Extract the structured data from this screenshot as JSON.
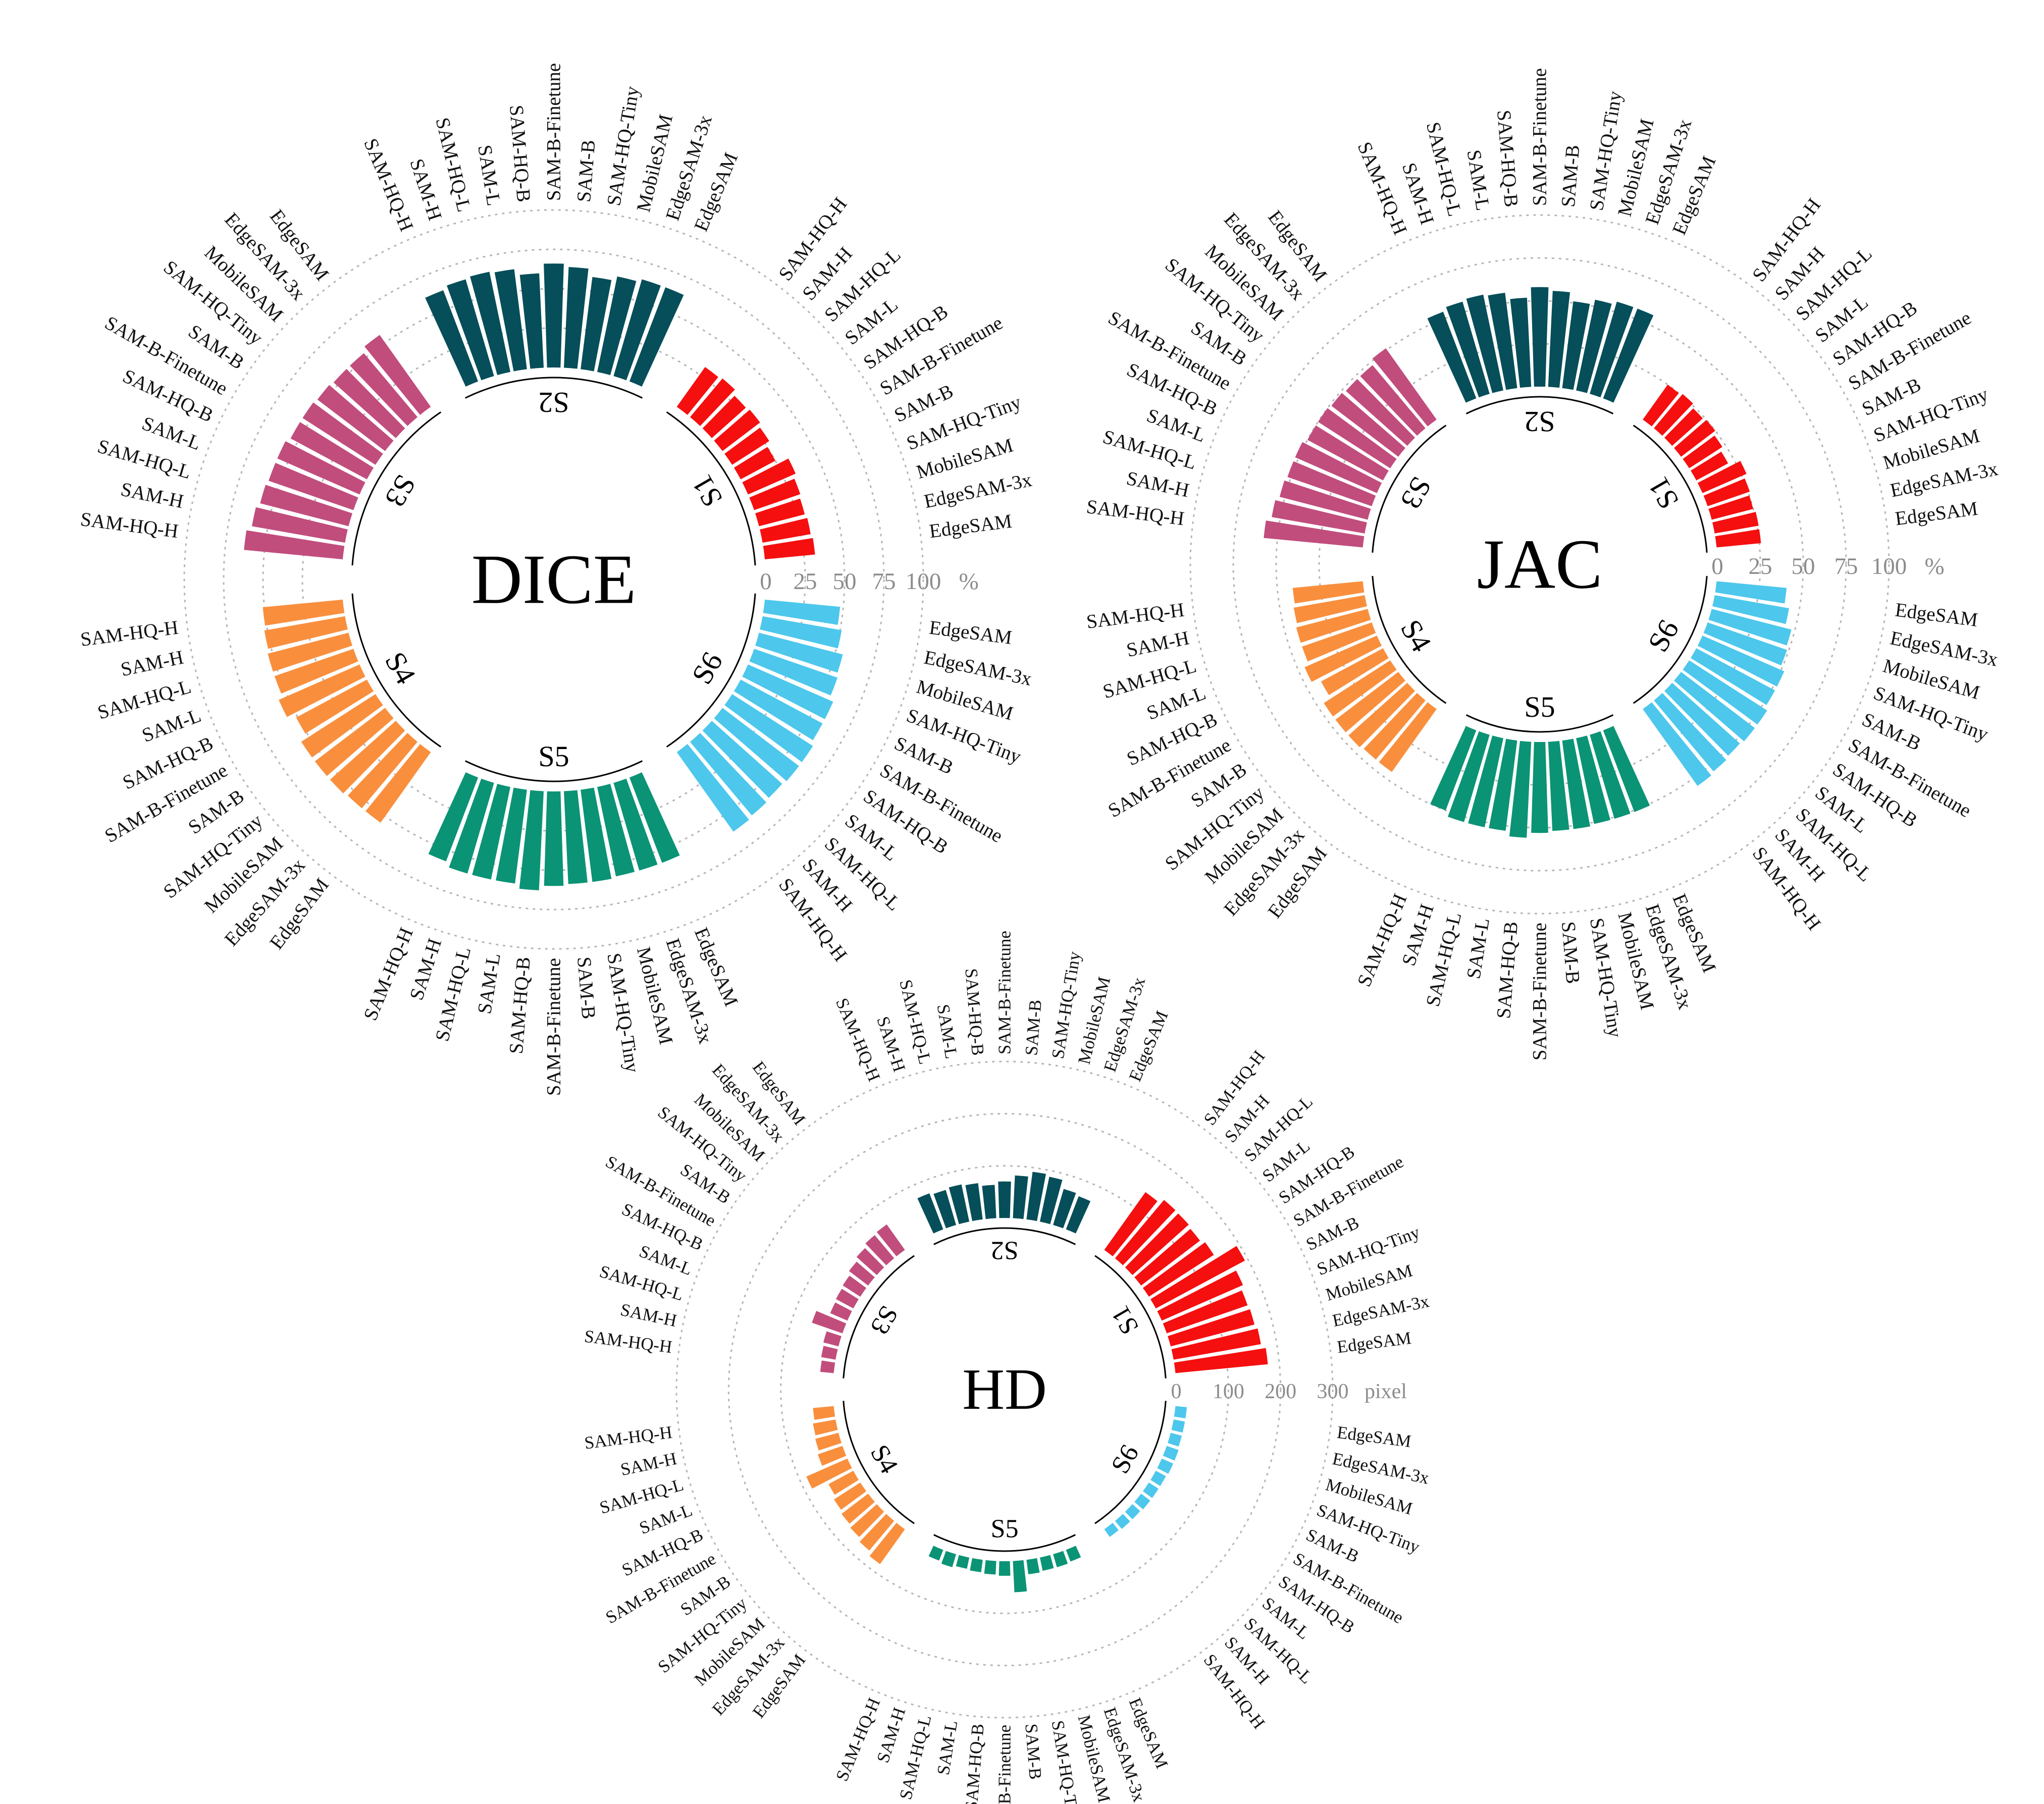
{
  "colors": {
    "S1": "#f50f0f",
    "S2": "#064e59",
    "S3": "#c14d7d",
    "S4": "#f98f3d",
    "S5": "#0b9375",
    "S6": "#4dc7ec"
  },
  "chart_data": [
    {
      "type": "radial-bar",
      "title": "DICE",
      "unit": "%",
      "ticks": [
        "0",
        "25",
        "50",
        "75",
        "100"
      ],
      "ylim": [
        0,
        100
      ],
      "groups": [
        {
          "name": "S1",
          "models": [
            "EdgeSAM",
            "EdgeSAM-3x",
            "MobileSAM",
            "SAM-HQ-Tiny",
            "SAM-B",
            "SAM-B-Finetune",
            "SAM-HQ-B",
            "SAM-L",
            "SAM-HQ-L",
            "SAM-H",
            "SAM-HQ-H"
          ],
          "values": [
            32,
            31,
            30,
            31,
            33,
            25,
            28,
            30,
            29,
            32,
            31
          ]
        },
        {
          "name": "S2",
          "models": [
            "EdgeSAM",
            "EdgeSAM-3x",
            "MobileSAM",
            "SAM-HQ-Tiny",
            "SAM-B",
            "SAM-B-Finetune",
            "SAM-HQ-B",
            "SAM-L",
            "SAM-HQ-L",
            "SAM-H",
            "SAM-HQ-H"
          ],
          "values": [
            64,
            64,
            62,
            59,
            64,
            66,
            60,
            64,
            65,
            64,
            62
          ]
        },
        {
          "name": "S3",
          "models": [
            "EdgeSAM",
            "EdgeSAM-3x",
            "MobileSAM",
            "SAM-HQ-Tiny",
            "SAM-B",
            "SAM-B-Finetune",
            "SAM-HQ-B",
            "SAM-L",
            "SAM-HQ-L",
            "SAM-H",
            "SAM-HQ-H"
          ],
          "values": [
            56,
            53,
            53,
            54,
            55,
            55,
            57,
            57,
            58,
            60,
            63
          ]
        },
        {
          "name": "S4",
          "models": [
            "EdgeSAM",
            "EdgeSAM-3x",
            "MobileSAM",
            "SAM-HQ-Tiny",
            "SAM-B",
            "SAM-B-Finetune",
            "SAM-HQ-B",
            "SAM-L",
            "SAM-HQ-L",
            "SAM-H",
            "SAM-HQ-H"
          ],
          "values": [
            55,
            55,
            56,
            56,
            56,
            51,
            56,
            53,
            53,
            52,
            51
          ]
        },
        {
          "name": "S5",
          "models": [
            "EdgeSAM",
            "EdgeSAM-3x",
            "MobileSAM",
            "SAM-HQ-Tiny",
            "SAM-B",
            "SAM-B-Finetune",
            "SAM-HQ-B",
            "SAM-L",
            "SAM-HQ-L",
            "SAM-H",
            "SAM-HQ-H"
          ],
          "values": [
            58,
            58,
            58,
            59,
            59,
            60,
            63,
            60,
            60,
            60,
            57
          ]
        },
        {
          "name": "S6",
          "models": [
            "EdgeSAM",
            "EdgeSAM-3x",
            "MobileSAM",
            "SAM-HQ-Tiny",
            "SAM-B",
            "SAM-B-Finetune",
            "SAM-HQ-B",
            "SAM-L",
            "SAM-HQ-L",
            "SAM-H",
            "SAM-HQ-H"
          ],
          "values": [
            48,
            51,
            55,
            56,
            59,
            59,
            61,
            61,
            60,
            61,
            62
          ]
        }
      ]
    },
    {
      "type": "radial-bar",
      "title": "JAC",
      "unit": "%",
      "ticks": [
        "0",
        "25",
        "50",
        "75",
        "100"
      ],
      "ylim": [
        0,
        100
      ],
      "groups": [
        {
          "name": "S1",
          "models": [
            "EdgeSAM",
            "EdgeSAM-3x",
            "MobileSAM",
            "SAM-HQ-Tiny",
            "SAM-B",
            "SAM-B-Finetune",
            "SAM-HQ-B",
            "SAM-L",
            "SAM-HQ-L",
            "SAM-H",
            "SAM-HQ-H"
          ],
          "values": [
            26,
            26,
            25,
            26,
            28,
            21,
            23,
            25,
            24,
            26,
            25
          ]
        },
        {
          "name": "S2",
          "models": [
            "EdgeSAM",
            "EdgeSAM-3x",
            "MobileSAM",
            "SAM-HQ-Tiny",
            "SAM-B",
            "SAM-B-Finetune",
            "SAM-HQ-B",
            "SAM-L",
            "SAM-HQ-L",
            "SAM-H",
            "SAM-HQ-H"
          ],
          "values": [
            56,
            56,
            54,
            51,
            56,
            58,
            52,
            56,
            57,
            56,
            54
          ]
        },
        {
          "name": "S3",
          "models": [
            "EdgeSAM",
            "EdgeSAM-3x",
            "MobileSAM",
            "SAM-HQ-Tiny",
            "SAM-B",
            "SAM-B-Finetune",
            "SAM-HQ-B",
            "SAM-L",
            "SAM-HQ-L",
            "SAM-H",
            "SAM-HQ-H"
          ],
          "values": [
            51,
            48,
            48,
            49,
            50,
            50,
            52,
            52,
            53,
            55,
            58
          ]
        },
        {
          "name": "S4",
          "models": [
            "EdgeSAM",
            "EdgeSAM-3x",
            "MobileSAM",
            "SAM-HQ-Tiny",
            "SAM-B",
            "SAM-B-Finetune",
            "SAM-HQ-B",
            "SAM-L",
            "SAM-HQ-L",
            "SAM-H",
            "SAM-HQ-H"
          ],
          "values": [
            45,
            45,
            46,
            46,
            46,
            41,
            46,
            43,
            43,
            42,
            41
          ]
        },
        {
          "name": "S5",
          "models": [
            "EdgeSAM",
            "EdgeSAM-3x",
            "MobileSAM",
            "SAM-HQ-Tiny",
            "SAM-B",
            "SAM-B-Finetune",
            "SAM-HQ-B",
            "SAM-L",
            "SAM-HQ-L",
            "SAM-H",
            "SAM-HQ-H"
          ],
          "values": [
            51,
            51,
            51,
            52,
            52,
            53,
            56,
            53,
            53,
            53,
            50
          ]
        },
        {
          "name": "S6",
          "models": [
            "EdgeSAM",
            "EdgeSAM-3x",
            "MobileSAM",
            "SAM-HQ-Tiny",
            "SAM-B",
            "SAM-B-Finetune",
            "SAM-HQ-B",
            "SAM-L",
            "SAM-HQ-L",
            "SAM-H",
            "SAM-HQ-H"
          ],
          "values": [
            41,
            44,
            48,
            49,
            52,
            52,
            54,
            54,
            53,
            54,
            55
          ]
        }
      ]
    },
    {
      "type": "radial-bar",
      "title": "HD",
      "unit": "pixel",
      "ticks": [
        "0",
        "100",
        "200",
        "300"
      ],
      "ylim": [
        0,
        300
      ],
      "groups": [
        {
          "name": "S1",
          "models": [
            "EdgeSAM",
            "EdgeSAM-3x",
            "MobileSAM",
            "SAM-HQ-Tiny",
            "SAM-B",
            "SAM-B-Finetune",
            "SAM-HQ-B",
            "SAM-L",
            "SAM-HQ-L",
            "SAM-H",
            "SAM-HQ-H"
          ],
          "values": [
            178,
            170,
            166,
            164,
            170,
            194,
            148,
            142,
            145,
            146,
            136
          ]
        },
        {
          "name": "S2",
          "models": [
            "EdgeSAM",
            "EdgeSAM-3x",
            "MobileSAM",
            "SAM-HQ-Tiny",
            "SAM-B",
            "SAM-B-Finetune",
            "SAM-HQ-B",
            "SAM-L",
            "SAM-HQ-L",
            "SAM-H",
            "SAM-HQ-H"
          ],
          "values": [
            68,
            72,
            88,
            92,
            82,
            70,
            64,
            70,
            73,
            70,
            74
          ]
        },
        {
          "name": "S3",
          "models": [
            "EdgeSAM",
            "EdgeSAM-3x",
            "MobileSAM",
            "SAM-HQ-Tiny",
            "SAM-B",
            "SAM-B-Finetune",
            "SAM-HQ-B",
            "SAM-L",
            "SAM-HQ-L",
            "SAM-H",
            "SAM-HQ-H"
          ],
          "values": [
            60,
            58,
            52,
            46,
            40,
            38,
            36,
            62,
            30,
            28,
            26
          ]
        },
        {
          "name": "S4",
          "models": [
            "EdgeSAM",
            "EdgeSAM-3x",
            "MobileSAM",
            "SAM-HQ-Tiny",
            "SAM-B",
            "SAM-B-Finetune",
            "SAM-HQ-B",
            "SAM-L",
            "SAM-HQ-L",
            "SAM-H",
            "SAM-HQ-H"
          ],
          "values": [
            82,
            74,
            68,
            64,
            60,
            54,
            86,
            50,
            46,
            44,
            40
          ]
        },
        {
          "name": "S5",
          "models": [
            "EdgeSAM",
            "EdgeSAM-3x",
            "MobileSAM",
            "SAM-HQ-Tiny",
            "SAM-B",
            "SAM-B-Finetune",
            "SAM-HQ-B",
            "SAM-L",
            "SAM-HQ-L",
            "SAM-H",
            "SAM-HQ-H"
          ],
          "values": [
            24,
            26,
            26,
            28,
            60,
            28,
            26,
            24,
            22,
            26,
            22
          ]
        },
        {
          "name": "S6",
          "models": [
            "EdgeSAM",
            "EdgeSAM-3x",
            "MobileSAM",
            "SAM-HQ-Tiny",
            "SAM-B",
            "SAM-B-Finetune",
            "SAM-HQ-B",
            "SAM-L",
            "SAM-HQ-L",
            "SAM-H",
            "SAM-HQ-H"
          ],
          "values": [
            22,
            22,
            22,
            24,
            24,
            22,
            22,
            22,
            20,
            20,
            18
          ]
        }
      ]
    }
  ]
}
